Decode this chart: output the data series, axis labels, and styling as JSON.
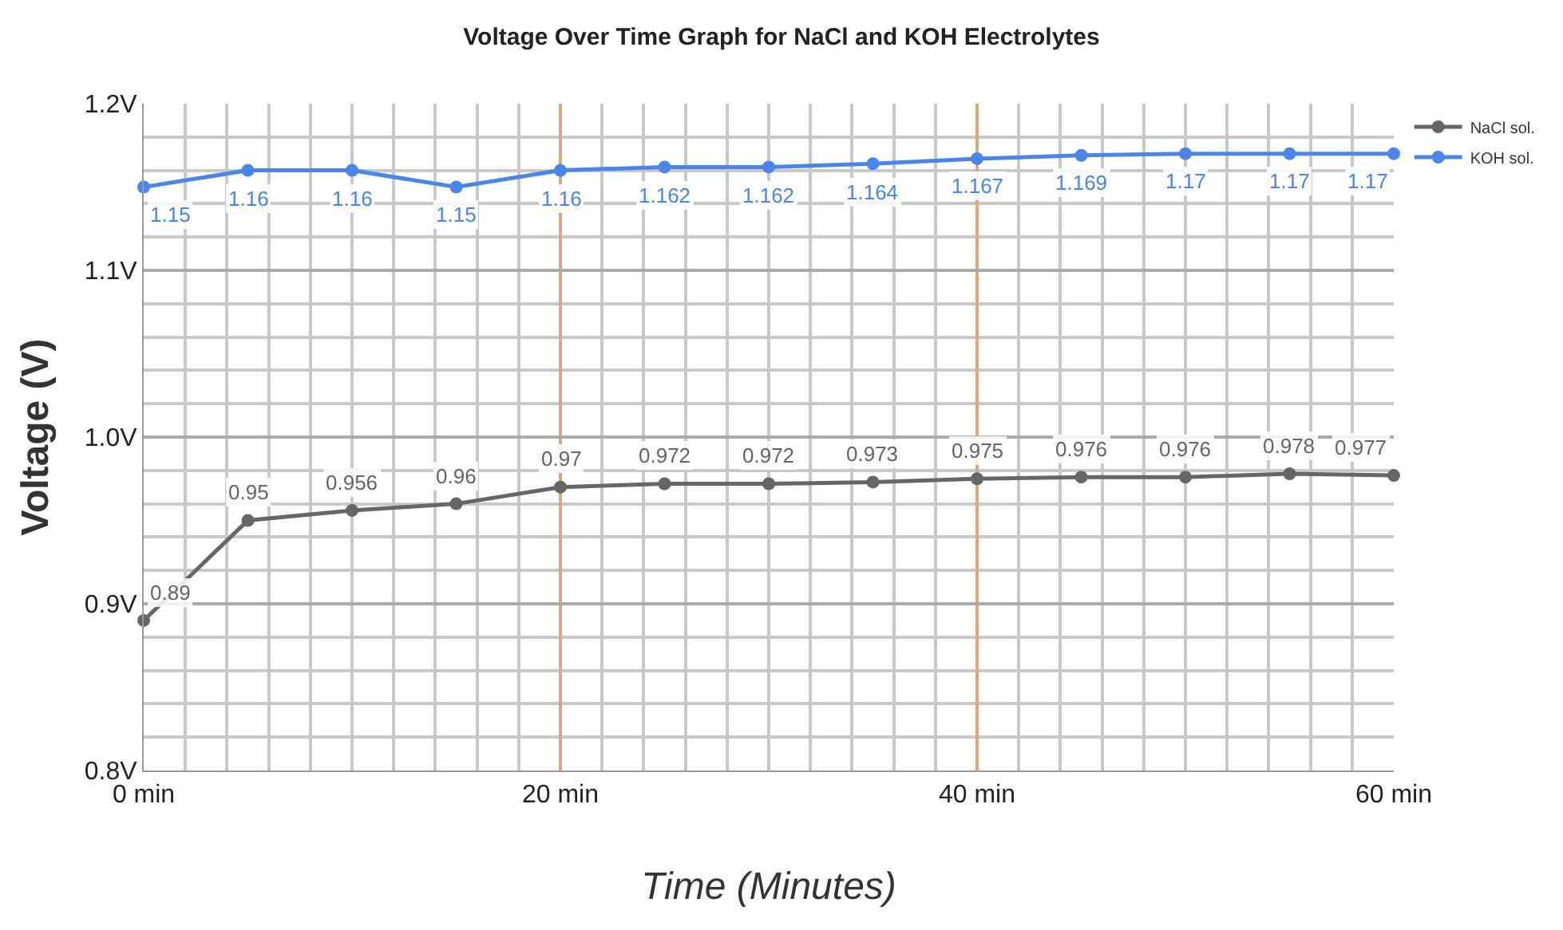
{
  "chart_data": {
    "type": "line",
    "title": "Voltage Over Time Graph for NaCl and KOH Electrolytes",
    "xlabel": "Time (Minutes)",
    "ylabel": "Voltage (V)",
    "x": [
      0,
      5,
      10,
      15,
      20,
      25,
      30,
      35,
      40,
      45,
      50,
      55,
      60
    ],
    "series": [
      {
        "name": "NaCl sol.",
        "color": "#666666",
        "values": [
          0.89,
          0.95,
          0.956,
          0.96,
          0.97,
          0.972,
          0.972,
          0.973,
          0.975,
          0.976,
          0.976,
          0.978,
          0.977
        ]
      },
      {
        "name": "KOH sol.",
        "color": "#4a86e8",
        "values": [
          1.15,
          1.16,
          1.16,
          1.15,
          1.16,
          1.162,
          1.162,
          1.164,
          1.167,
          1.169,
          1.17,
          1.17,
          1.17
        ]
      }
    ],
    "xlim": [
      0,
      60
    ],
    "xticks": [
      {
        "value": 0,
        "label": "0 min"
      },
      {
        "value": 20,
        "label": "20 min"
      },
      {
        "value": 40,
        "label": "40 min"
      },
      {
        "value": 60,
        "label": "60 min"
      }
    ],
    "ylim": [
      0.8,
      1.2
    ],
    "yticks": [
      {
        "value": 0.8,
        "label": "0.8V"
      },
      {
        "value": 0.9,
        "label": "0.9V"
      },
      {
        "value": 1.0,
        "label": "1.0V"
      },
      {
        "value": 1.1,
        "label": "1.1V"
      },
      {
        "value": 1.2,
        "label": "1.2V"
      }
    ],
    "grid": true,
    "legend": "top right",
    "marker": "circle",
    "line_style": "solid",
    "data_labels": true
  }
}
